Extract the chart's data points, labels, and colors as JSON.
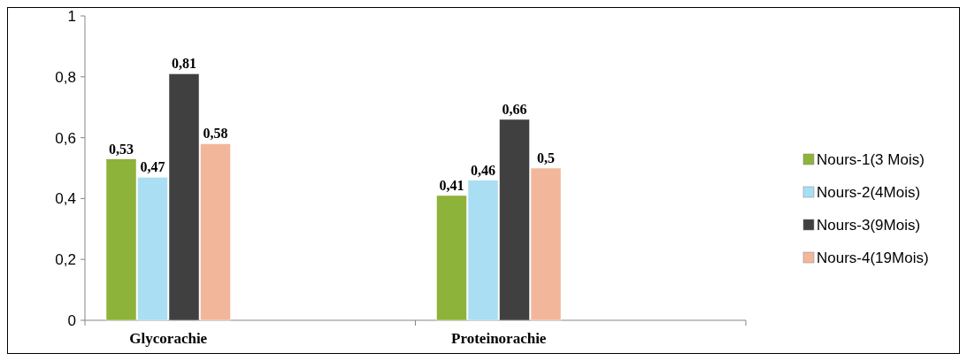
{
  "chart_data": {
    "type": "bar",
    "categories": [
      "Glycorachie",
      "Proteinorachie"
    ],
    "series": [
      {
        "name": "Nours-1(3 Mois)",
        "color": "#8db33a",
        "values": [
          0.53,
          0.41
        ],
        "value_labels": [
          "0,53",
          "0,41"
        ]
      },
      {
        "name": "Nours-2(4Mois)",
        "color": "#a9def3",
        "values": [
          0.47,
          0.46
        ],
        "value_labels": [
          "0,47",
          "0,46"
        ]
      },
      {
        "name": "Nours-3(9Mois)",
        "color": "#404040",
        "values": [
          0.81,
          0.66
        ],
        "value_labels": [
          "0,81",
          "0,66"
        ]
      },
      {
        "name": "Nours-4(19Mois)",
        "color": "#f2b79b",
        "values": [
          0.58,
          0.5
        ],
        "value_labels": [
          "0,58",
          "0,5"
        ]
      }
    ],
    "ylim": [
      0,
      1
    ],
    "yticks": [
      0,
      {
        "value": 0.2,
        "label": "0,2"
      },
      {
        "value": 0.4,
        "label": "0,4"
      },
      {
        "value": 0.6,
        "label": "0,6"
      },
      {
        "value": 0.8,
        "label": "0,8"
      },
      1
    ],
    "grid": false,
    "legend": "right"
  }
}
